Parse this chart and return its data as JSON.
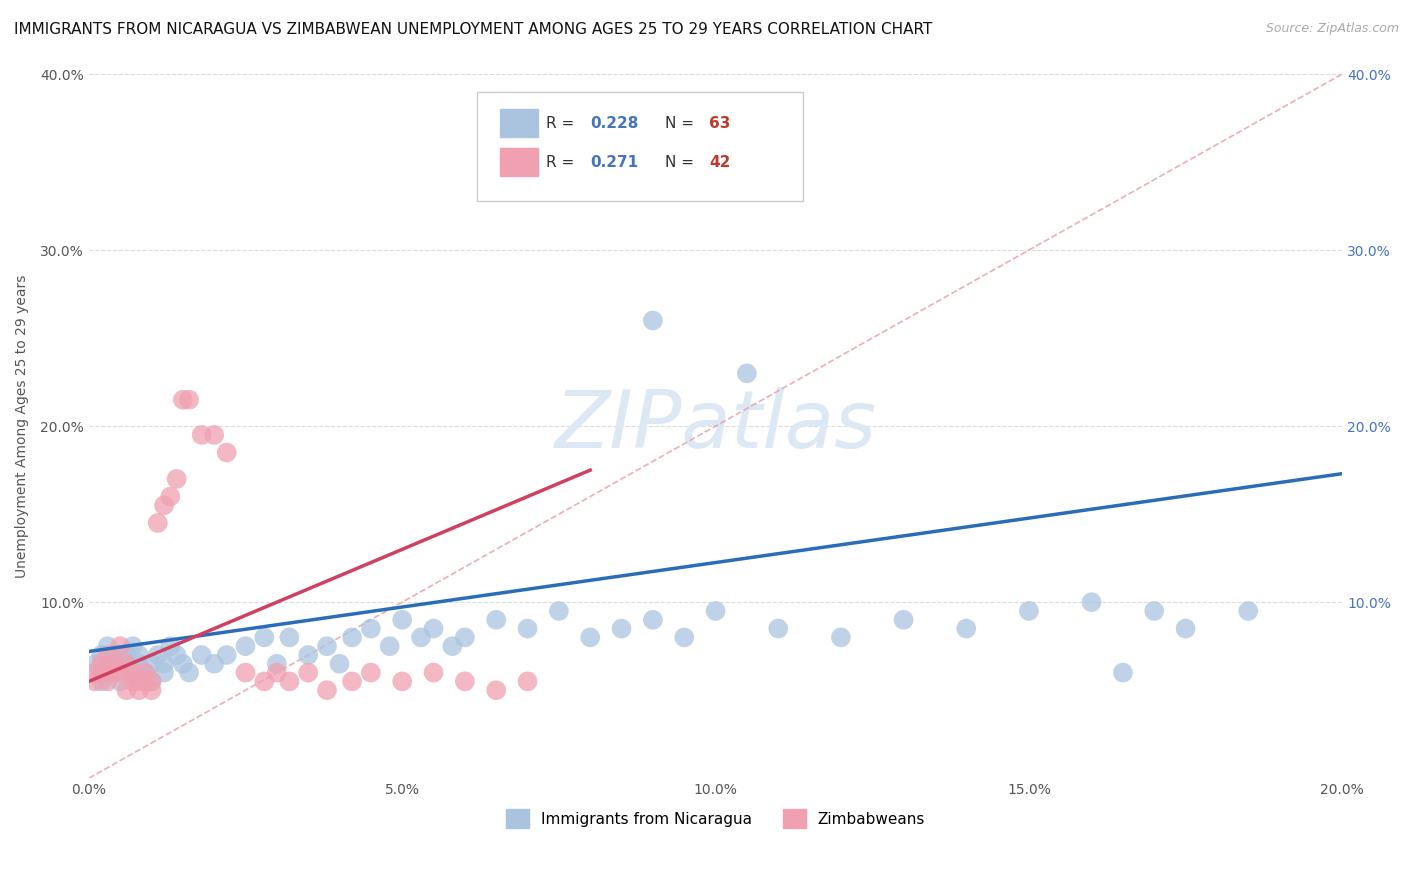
{
  "title": "IMMIGRANTS FROM NICARAGUA VS ZIMBABWEAN UNEMPLOYMENT AMONG AGES 25 TO 29 YEARS CORRELATION CHART",
  "source": "Source: ZipAtlas.com",
  "ylabel": "Unemployment Among Ages 25 to 29 years",
  "xlim": [
    0.0,
    0.2
  ],
  "ylim": [
    0.0,
    0.4
  ],
  "xticks": [
    0.0,
    0.05,
    0.1,
    0.15,
    0.2
  ],
  "yticks": [
    0.0,
    0.1,
    0.2,
    0.3,
    0.4
  ],
  "R_nicaragua": 0.228,
  "N_nicaragua": 63,
  "R_zimbabwe": 0.271,
  "N_zimbabwe": 42,
  "color_nicaragua": "#aac4e0",
  "color_zimbabwe": "#f0a0b0",
  "line_color_nicaragua": "#2b6cb8",
  "line_color_zimbabwe": "#d04060",
  "ref_line_color": "#e8a0a8",
  "legend_label_nicaragua": "Immigrants from Nicaragua",
  "legend_label_zimbabwe": "Zimbabweans",
  "background_color": "#ffffff",
  "grid_color": "#cccccc",
  "title_fontsize": 11,
  "legend_R_color": "#4472c4",
  "legend_N_color": "#c0392b",
  "right_axis_color": "#4472c4",
  "nicaragua_x": [
    0.001,
    0.002,
    0.002,
    0.003,
    0.003,
    0.004,
    0.004,
    0.005,
    0.005,
    0.006,
    0.006,
    0.007,
    0.007,
    0.008,
    0.008,
    0.009,
    0.01,
    0.01,
    0.011,
    0.012,
    0.012,
    0.013,
    0.014,
    0.015,
    0.016,
    0.018,
    0.02,
    0.022,
    0.025,
    0.028,
    0.03,
    0.032,
    0.035,
    0.038,
    0.04,
    0.042,
    0.045,
    0.048,
    0.05,
    0.053,
    0.055,
    0.058,
    0.06,
    0.065,
    0.07,
    0.075,
    0.08,
    0.085,
    0.09,
    0.095,
    0.1,
    0.11,
    0.12,
    0.13,
    0.14,
    0.15,
    0.16,
    0.17,
    0.175,
    0.185,
    0.09,
    0.105,
    0.165
  ],
  "nicaragua_y": [
    0.065,
    0.07,
    0.055,
    0.075,
    0.06,
    0.065,
    0.07,
    0.06,
    0.055,
    0.07,
    0.065,
    0.06,
    0.075,
    0.065,
    0.07,
    0.06,
    0.065,
    0.055,
    0.07,
    0.065,
    0.06,
    0.075,
    0.07,
    0.065,
    0.06,
    0.07,
    0.065,
    0.07,
    0.075,
    0.08,
    0.065,
    0.08,
    0.07,
    0.075,
    0.065,
    0.08,
    0.085,
    0.075,
    0.09,
    0.08,
    0.085,
    0.075,
    0.08,
    0.09,
    0.085,
    0.095,
    0.08,
    0.085,
    0.09,
    0.08,
    0.095,
    0.085,
    0.08,
    0.09,
    0.085,
    0.095,
    0.1,
    0.095,
    0.085,
    0.095,
    0.26,
    0.23,
    0.06
  ],
  "zimbabwe_x": [
    0.001,
    0.001,
    0.002,
    0.002,
    0.003,
    0.003,
    0.004,
    0.004,
    0.005,
    0.005,
    0.006,
    0.006,
    0.007,
    0.007,
    0.008,
    0.008,
    0.009,
    0.009,
    0.01,
    0.01,
    0.011,
    0.012,
    0.013,
    0.014,
    0.015,
    0.016,
    0.018,
    0.02,
    0.022,
    0.025,
    0.028,
    0.03,
    0.032,
    0.035,
    0.038,
    0.042,
    0.045,
    0.05,
    0.055,
    0.06,
    0.065,
    0.07
  ],
  "zimbabwe_y": [
    0.055,
    0.06,
    0.06,
    0.065,
    0.055,
    0.07,
    0.065,
    0.06,
    0.075,
    0.06,
    0.05,
    0.065,
    0.055,
    0.06,
    0.055,
    0.05,
    0.06,
    0.055,
    0.05,
    0.055,
    0.145,
    0.155,
    0.16,
    0.17,
    0.215,
    0.215,
    0.195,
    0.195,
    0.185,
    0.06,
    0.055,
    0.06,
    0.055,
    0.06,
    0.05,
    0.055,
    0.06,
    0.055,
    0.06,
    0.055,
    0.05,
    0.055
  ],
  "nic_line_x": [
    0.0,
    0.2
  ],
  "nic_line_y": [
    0.072,
    0.173
  ],
  "zim_line_x": [
    0.0,
    0.08
  ],
  "zim_line_y": [
    0.055,
    0.175
  ]
}
